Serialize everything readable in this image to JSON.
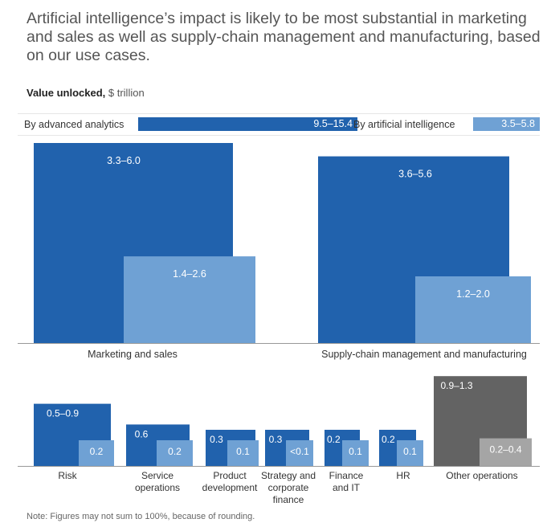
{
  "title": "Artificial intelligence’s impact is likely to be most substantial in marketing and sales as well as supply-chain management and manufacturing, based on our use cases.",
  "subtitle_bold": "Value unlocked,",
  "subtitle_unit": "$ trillion",
  "legend": [
    {
      "label": "By advanced analytics",
      "value": "9.5–15.4",
      "color": "#2162ad"
    },
    {
      "label": "By artificial intelligence",
      "value": "3.5–5.8",
      "color": "#6fa1d4"
    }
  ],
  "note": "Note: Figures may not sum to 100%, because of rounding.",
  "colors": {
    "analytics": "#2162ad",
    "ai": "#6fa1d4",
    "other_analytics": "#636363",
    "other_ai": "#a5a5a5",
    "axis": "#999999"
  },
  "chart_data": {
    "type": "bar",
    "title": "Value unlocked, $ trillion",
    "unit": "$ trillion",
    "series_names": [
      "By advanced analytics",
      "By artificial intelligence"
    ],
    "totals": {
      "By advanced analytics": [
        9.5,
        15.4
      ],
      "By artificial intelligence": [
        3.5,
        5.8
      ]
    },
    "legend_position": "top",
    "grid": false,
    "panels": [
      {
        "name": "top",
        "categories": [
          {
            "label": [
              "Marketing and sales"
            ],
            "analytics": {
              "label": "3.3–6.0",
              "low": 3.3,
              "high": 6.0
            },
            "ai": {
              "label": "1.4–2.6",
              "low": 1.4,
              "high": 2.6
            }
          },
          {
            "label": [
              "Supply-chain management and manufacturing"
            ],
            "analytics": {
              "label": "3.6–5.6",
              "low": 3.6,
              "high": 5.6
            },
            "ai": {
              "label": "1.2–2.0",
              "low": 1.2,
              "high": 2.0
            }
          }
        ]
      },
      {
        "name": "bottom",
        "categories": [
          {
            "label": [
              "Risk"
            ],
            "analytics": {
              "label": "0.5–0.9",
              "low": 0.5,
              "high": 0.9
            },
            "ai": {
              "label": "0.2",
              "low": 0.2,
              "high": 0.2
            }
          },
          {
            "label": [
              "Service",
              "operations"
            ],
            "analytics": {
              "label": "0.6",
              "low": 0.6,
              "high": 0.6
            },
            "ai": {
              "label": "0.2",
              "low": 0.2,
              "high": 0.2
            }
          },
          {
            "label": [
              "Product",
              "development"
            ],
            "analytics": {
              "label": "0.3",
              "low": 0.3,
              "high": 0.3
            },
            "ai": {
              "label": "0.1",
              "low": 0.1,
              "high": 0.1
            }
          },
          {
            "label": [
              "Strategy and",
              "corporate",
              "finance"
            ],
            "analytics": {
              "label": "0.3",
              "low": 0.3,
              "high": 0.3
            },
            "ai": {
              "label": "<0.1",
              "low": 0.05,
              "high": 0.05
            }
          },
          {
            "label": [
              "Finance",
              "and IT"
            ],
            "analytics": {
              "label": "0.2",
              "low": 0.2,
              "high": 0.2
            },
            "ai": {
              "label": "0.1",
              "low": 0.1,
              "high": 0.1
            }
          },
          {
            "label": [
              "HR"
            ],
            "analytics": {
              "label": "0.2",
              "low": 0.2,
              "high": 0.2
            },
            "ai": {
              "label": "0.1",
              "low": 0.1,
              "high": 0.1
            }
          },
          {
            "label": [
              "Other operations"
            ],
            "analytics": {
              "label": "0.9–1.3",
              "low": 0.9,
              "high": 1.3
            },
            "ai": {
              "label": "0.2–0.4",
              "low": 0.2,
              "high": 0.4
            },
            "style": "gray"
          }
        ]
      }
    ]
  }
}
